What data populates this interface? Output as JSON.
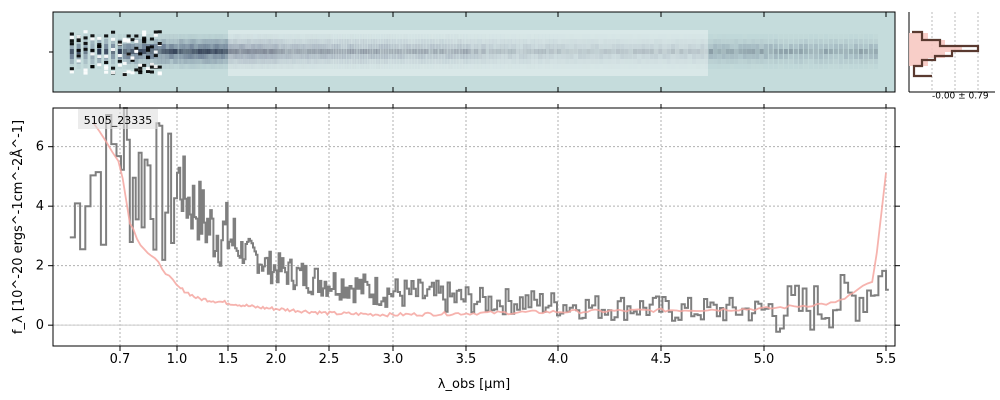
{
  "chart_data": {
    "type": "line",
    "object_label": "5105_23335",
    "xlabel": "λ_obs [μm]",
    "ylabel": "f_λ [10^-20 ergs^-1cm^-2Å^-1]",
    "x_scale": "sqrt-like (nonlinear wavelength axis)",
    "xlim": [
      0.5,
      5.55
    ],
    "ylim": [
      -0.7,
      7.3
    ],
    "x_ticks": [
      "0.7",
      "1.0",
      "1.5",
      "2.0",
      "2.5",
      "3.0",
      "3.5",
      "4.0",
      "4.5",
      "5.0",
      "5.5"
    ],
    "x_tick_values": [
      0.7,
      1.0,
      1.5,
      2.0,
      2.5,
      3.0,
      3.5,
      4.0,
      4.5,
      5.0,
      5.5
    ],
    "y_ticks": [
      "0",
      "2",
      "4",
      "6"
    ],
    "y_tick_values": [
      0,
      2,
      4,
      6
    ],
    "grid": true,
    "colors": {
      "data": "#7f7f7f",
      "model": "#f4a6a0",
      "spectrum2d_bg": "#c5dcdc",
      "hist_fill": "#f7c9c2",
      "hist_line": "#5a3a30"
    },
    "series": [
      {
        "role": "observed spectrum",
        "x": [
          0.55,
          0.6,
          0.65,
          0.7,
          0.75,
          0.8,
          0.85,
          0.9,
          0.95,
          1.0,
          1.1,
          1.2,
          1.3,
          1.4,
          1.5,
          1.6,
          1.7,
          1.8,
          1.9,
          2.0,
          2.2,
          2.4,
          2.6,
          2.8,
          3.0,
          3.2,
          3.4,
          3.6,
          3.8,
          4.0,
          4.2,
          4.4,
          4.6,
          4.8,
          5.0,
          5.2,
          5.4,
          5.48
        ],
        "y": [
          3.0,
          5.5,
          4.8,
          6.5,
          5.0,
          4.9,
          5.5,
          4.3,
          4.0,
          5.0,
          4.2,
          3.9,
          3.3,
          3.1,
          3.0,
          2.6,
          2.4,
          2.3,
          2.0,
          1.9,
          1.7,
          1.5,
          1.4,
          1.2,
          1.1,
          1.0,
          0.9,
          0.8,
          0.8,
          0.7,
          0.6,
          0.6,
          0.5,
          0.5,
          0.5,
          0.6,
          1.0,
          1.7
        ]
      },
      {
        "role": "model",
        "x": [
          0.62,
          0.7,
          0.75,
          0.8,
          0.85,
          0.9,
          1.0,
          1.2,
          1.4,
          1.6,
          1.8,
          2.0,
          2.5,
          3.0,
          3.5,
          4.0,
          4.5,
          5.0,
          5.3,
          5.45,
          5.5
        ],
        "y": [
          6.8,
          5.5,
          3.5,
          2.8,
          2.4,
          2.1,
          1.3,
          0.9,
          0.8,
          0.7,
          0.6,
          0.55,
          0.4,
          0.35,
          0.4,
          0.45,
          0.5,
          0.55,
          0.75,
          1.5,
          5.1
        ]
      }
    ],
    "inset_histogram": {
      "label": "-0.00 ± 0.79"
    }
  }
}
